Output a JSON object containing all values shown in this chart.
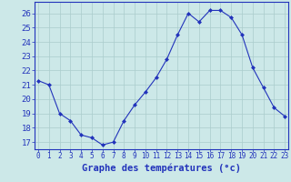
{
  "hours": [
    0,
    1,
    2,
    3,
    4,
    5,
    6,
    7,
    8,
    9,
    10,
    11,
    12,
    13,
    14,
    15,
    16,
    17,
    18,
    19,
    20,
    21,
    22,
    23
  ],
  "temperatures": [
    21.3,
    21.0,
    19.0,
    18.5,
    17.5,
    17.3,
    16.8,
    17.0,
    18.5,
    19.6,
    20.5,
    21.5,
    22.8,
    24.5,
    26.0,
    25.4,
    26.2,
    26.2,
    25.7,
    24.5,
    22.2,
    20.8,
    19.4,
    18.8
  ],
  "line_color": "#2233bb",
  "marker": "D",
  "marker_size": 2.0,
  "line_width": 0.8,
  "bg_color": "#cce8e8",
  "grid_color": "#aacccc",
  "xlabel": "Graphe des températures (°c)",
  "xlabel_fontsize": 7.5,
  "xlabel_color": "#2233bb",
  "xlabel_fontweight": "bold",
  "ylim": [
    16.5,
    26.8
  ],
  "yticks": [
    17,
    18,
    19,
    20,
    21,
    22,
    23,
    24,
    25,
    26
  ],
  "ytick_fontsize": 6.5,
  "xtick_fontsize": 5.5,
  "tick_color": "#2233bb",
  "spine_color": "#2233bb"
}
